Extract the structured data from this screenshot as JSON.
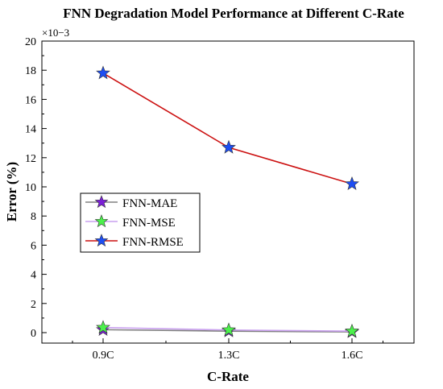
{
  "chart_data": {
    "type": "line",
    "title": "FNN Degradation Model Performance at Different C-Rate",
    "xlabel": "C-Rate",
    "ylabel": "Error (%)",
    "y_multiplier": "×10−3",
    "categories": [
      "0.9C",
      "1.3C",
      "1.6C"
    ],
    "ylim": [
      -0.7,
      20
    ],
    "yticks": [
      0,
      2,
      4,
      6,
      8,
      10,
      12,
      14,
      16,
      18,
      20
    ],
    "grid": false,
    "legend_position": "left-center",
    "series": [
      {
        "name": "FNN-MAE",
        "values": [
          0.2,
          0.1,
          0.05
        ],
        "line_color": "#808080",
        "marker_color": "#7b1fd6",
        "marker": "star"
      },
      {
        "name": "FNN-MSE",
        "values": [
          0.35,
          0.18,
          0.1
        ],
        "line_color": "#c9a0ef",
        "marker_color": "#4cf04c",
        "marker": "star"
      },
      {
        "name": "FNN-RMSE",
        "values": [
          17.8,
          12.7,
          10.2
        ],
        "line_color": "#cc1111",
        "marker_color": "#1e4ef2",
        "marker": "star"
      }
    ]
  }
}
